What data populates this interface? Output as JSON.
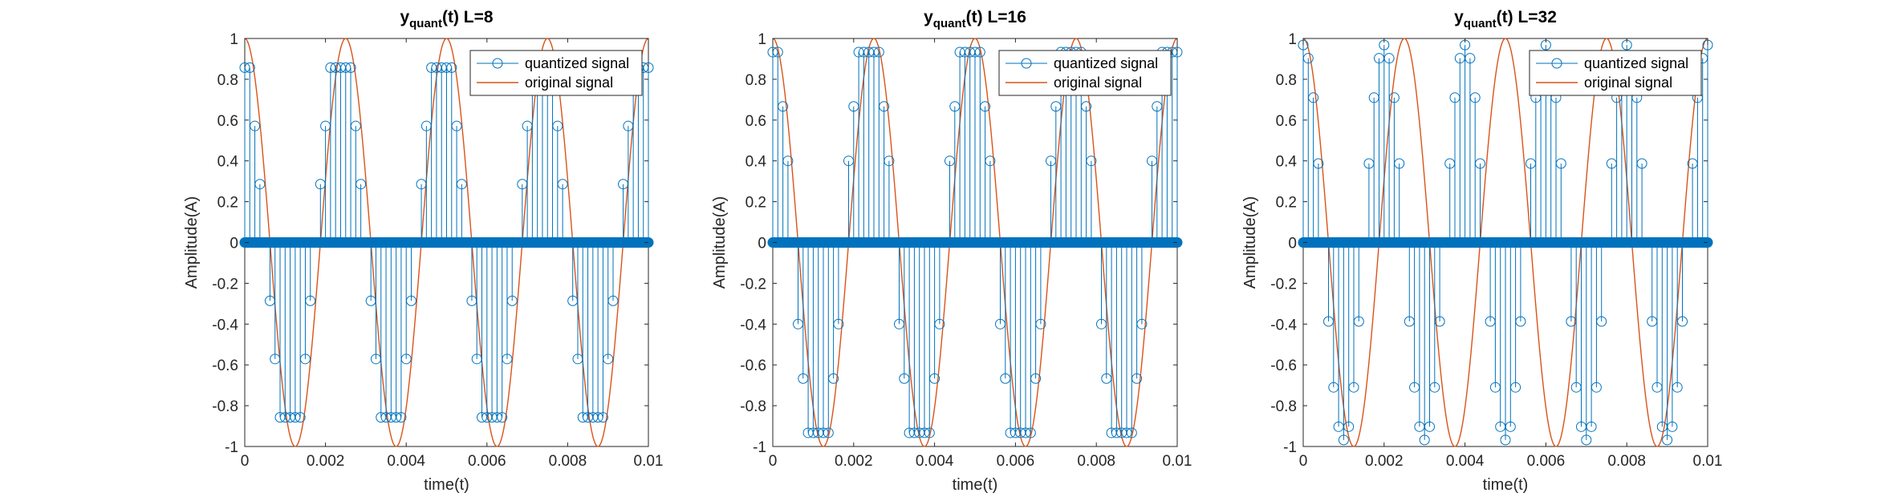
{
  "chart_data": [
    {
      "type": "stem+line",
      "title_main": "y",
      "title_sub": "quant",
      "title_rest": "(t) L=8",
      "xlabel": "time(t)",
      "ylabel": "Amplitude(A)",
      "xlim": [
        0,
        0.01
      ],
      "ylim": [
        -1,
        1
      ],
      "xticks": [
        0,
        0.002,
        0.004,
        0.006,
        0.008,
        0.01
      ],
      "xticklabels": [
        "0",
        "0.002",
        "0.004",
        "0.006",
        "0.008",
        "0.01"
      ],
      "yticks": [
        -1,
        -0.8,
        -0.6,
        -0.4,
        -0.2,
        0,
        0.2,
        0.4,
        0.6,
        0.8,
        1
      ],
      "yticklabels": [
        "-1",
        "-0.8",
        "-0.6",
        "-0.4",
        "-0.2",
        "0",
        "0.2",
        "0.4",
        "0.6",
        "0.8",
        "1"
      ],
      "legend": [
        "quantized signal",
        "original signal"
      ],
      "legend_position": "top-right",
      "grid": false,
      "levels": 8,
      "signal_frequency_hz": 400,
      "sample_interval_s": 0.000125,
      "series": [
        {
          "name": "quantized signal",
          "style": "stem",
          "color": "#0072BD",
          "x": [
            0,
            0.000125,
            0.00025,
            0.000375,
            0.0005,
            0.000625,
            0.00075,
            0.000875,
            0.001,
            0.001125,
            0.00125,
            0.001375,
            0.0015,
            0.001625,
            0.00175,
            0.001875,
            0.002,
            0.002125,
            0.00225,
            0.002375,
            0.0025,
            0.002625,
            0.00275,
            0.002875,
            0.003,
            0.003125,
            0.00325,
            0.003375,
            0.0035,
            0.003625,
            0.00375,
            0.003875,
            0.004,
            0.004125,
            0.00425,
            0.004375,
            0.0045,
            0.004625,
            0.00475,
            0.004875,
            0.005,
            0.005125,
            0.00525,
            0.005375,
            0.0055,
            0.005625,
            0.00575,
            0.005875,
            0.006,
            0.006125,
            0.00625,
            0.006375,
            0.0065,
            0.006625,
            0.00675,
            0.006875,
            0.007,
            0.007125,
            0.00725,
            0.007375,
            0.0075,
            0.007625,
            0.00775,
            0.007875,
            0.008,
            0.008125,
            0.00825,
            0.008375,
            0.0085,
            0.008625,
            0.00875,
            0.008875,
            0.009,
            0.009125,
            0.00925,
            0.009375,
            0.0095,
            0.009625,
            0.00975,
            0.009875,
            0.01
          ],
          "y": [
            0.857,
            0.857,
            0.571,
            0.286,
            0,
            -0.286,
            -0.571,
            -0.857,
            -0.857,
            -0.857,
            -0.857,
            -0.857,
            -0.571,
            -0.286,
            0,
            0.286,
            0.571,
            0.857,
            0.857,
            0.857,
            0.857,
            0.857,
            0.571,
            0.286,
            0,
            -0.286,
            -0.571,
            -0.857,
            -0.857,
            -0.857,
            -0.857,
            -0.857,
            -0.571,
            -0.286,
            0,
            0.286,
            0.571,
            0.857,
            0.857,
            0.857,
            0.857,
            0.857,
            0.571,
            0.286,
            0,
            -0.286,
            -0.571,
            -0.857,
            -0.857,
            -0.857,
            -0.857,
            -0.857,
            -0.571,
            -0.286,
            0,
            0.286,
            0.571,
            0.857,
            0.857,
            0.857,
            0.857,
            0.857,
            0.571,
            0.286,
            0,
            -0.286,
            -0.571,
            -0.857,
            -0.857,
            -0.857,
            -0.857,
            -0.857,
            -0.571,
            -0.286,
            0,
            0.286,
            0.571,
            0.857,
            0.857,
            0.857,
            0.857
          ]
        },
        {
          "name": "original signal",
          "style": "line",
          "color": "#D95319",
          "function": "cos(2*pi*400*t)"
        }
      ]
    },
    {
      "type": "stem+line",
      "title_main": "y",
      "title_sub": "quant",
      "title_rest": "(t) L=16",
      "xlabel": "time(t)",
      "ylabel": "Amplitude(A)",
      "xlim": [
        0,
        0.01
      ],
      "ylim": [
        -1,
        1
      ],
      "xticks": [
        0,
        0.002,
        0.004,
        0.006,
        0.008,
        0.01
      ],
      "xticklabels": [
        "0",
        "0.002",
        "0.004",
        "0.006",
        "0.008",
        "0.01"
      ],
      "yticks": [
        -1,
        -0.8,
        -0.6,
        -0.4,
        -0.2,
        0,
        0.2,
        0.4,
        0.6,
        0.8,
        1
      ],
      "yticklabels": [
        "-1",
        "-0.8",
        "-0.6",
        "-0.4",
        "-0.2",
        "0",
        "0.2",
        "0.4",
        "0.6",
        "0.8",
        "1"
      ],
      "legend": [
        "quantized signal",
        "original signal"
      ],
      "legend_position": "top-right",
      "grid": false,
      "levels": 16,
      "signal_frequency_hz": 400,
      "sample_interval_s": 0.000125,
      "series": [
        {
          "name": "quantized signal",
          "style": "stem",
          "color": "#0072BD",
          "x": [
            0,
            0.000125,
            0.00025,
            0.000375,
            0.0005,
            0.000625,
            0.00075,
            0.000875,
            0.001,
            0.001125,
            0.00125,
            0.001375,
            0.0015,
            0.001625,
            0.00175,
            0.001875,
            0.002,
            0.002125,
            0.00225,
            0.002375,
            0.0025,
            0.002625,
            0.00275,
            0.002875,
            0.003,
            0.003125,
            0.00325,
            0.003375,
            0.0035,
            0.003625,
            0.00375,
            0.003875,
            0.004,
            0.004125,
            0.00425,
            0.004375,
            0.0045,
            0.004625,
            0.00475,
            0.004875,
            0.005,
            0.005125,
            0.00525,
            0.005375,
            0.0055,
            0.005625,
            0.00575,
            0.005875,
            0.006,
            0.006125,
            0.00625,
            0.006375,
            0.0065,
            0.006625,
            0.00675,
            0.006875,
            0.007,
            0.007125,
            0.00725,
            0.007375,
            0.0075,
            0.007625,
            0.00775,
            0.007875,
            0.008,
            0.008125,
            0.00825,
            0.008375,
            0.0085,
            0.008625,
            0.00875,
            0.008875,
            0.009,
            0.009125,
            0.00925,
            0.009375,
            0.0095,
            0.009625,
            0.00975,
            0.009875,
            0.01
          ],
          "y": [
            0.933,
            0.933,
            0.667,
            0.4,
            0,
            -0.4,
            -0.667,
            -0.933,
            -0.933,
            -0.933,
            -0.933,
            -0.933,
            -0.667,
            -0.4,
            0,
            0.4,
            0.667,
            0.933,
            0.933,
            0.933,
            0.933,
            0.933,
            0.667,
            0.4,
            0,
            -0.4,
            -0.667,
            -0.933,
            -0.933,
            -0.933,
            -0.933,
            -0.933,
            -0.667,
            -0.4,
            0,
            0.4,
            0.667,
            0.933,
            0.933,
            0.933,
            0.933,
            0.933,
            0.667,
            0.4,
            0,
            -0.4,
            -0.667,
            -0.933,
            -0.933,
            -0.933,
            -0.933,
            -0.933,
            -0.667,
            -0.4,
            0,
            0.4,
            0.667,
            0.933,
            0.933,
            0.933,
            0.933,
            0.933,
            0.667,
            0.4,
            0,
            -0.4,
            -0.667,
            -0.933,
            -0.933,
            -0.933,
            -0.933,
            -0.933,
            -0.667,
            -0.4,
            0,
            0.4,
            0.667,
            0.933,
            0.933,
            0.933,
            0.933
          ]
        },
        {
          "name": "original signal",
          "style": "line",
          "color": "#D95319",
          "function": "cos(2*pi*400*t)"
        }
      ]
    },
    {
      "type": "stem+line",
      "title_main": "y",
      "title_sub": "quant",
      "title_rest": "(t) L=32",
      "xlabel": "time(t)",
      "ylabel": "Amplitude(A)",
      "xlim": [
        0,
        0.01
      ],
      "ylim": [
        -1,
        1
      ],
      "xticks": [
        0,
        0.002,
        0.004,
        0.006,
        0.008,
        0.01
      ],
      "xticklabels": [
        "0",
        "0.002",
        "0.004",
        "0.006",
        "0.008",
        "0.01"
      ],
      "yticks": [
        -1,
        -0.8,
        -0.6,
        -0.4,
        -0.2,
        0,
        0.2,
        0.4,
        0.6,
        0.8,
        1
      ],
      "yticklabels": [
        "-1",
        "-0.8",
        "-0.6",
        "-0.4",
        "-0.2",
        "0",
        "0.2",
        "0.4",
        "0.6",
        "0.8",
        "1"
      ],
      "legend": [
        "quantized signal",
        "original signal"
      ],
      "legend_position": "top-right",
      "grid": false,
      "levels": 32,
      "signal_frequency_hz": 400,
      "sample_interval_s": 0.000125,
      "series": [
        {
          "name": "quantized signal",
          "style": "stem",
          "color": "#0072BD",
          "x": [
            0,
            0.000125,
            0.00025,
            0.000375,
            0.0005,
            0.000625,
            0.00075,
            0.000875,
            0.001,
            0.001125,
            0.00125,
            0.001375,
            0.0015,
            0.001625,
            0.00175,
            0.001875,
            0.002,
            0.002125,
            0.00225,
            0.002375,
            0.0025,
            0.002625,
            0.00275,
            0.002875,
            0.003,
            0.003125,
            0.00325,
            0.003375,
            0.0035,
            0.003625,
            0.00375,
            0.003875,
            0.004,
            0.004125,
            0.00425,
            0.004375,
            0.0045,
            0.004625,
            0.00475,
            0.004875,
            0.005,
            0.005125,
            0.00525,
            0.005375,
            0.0055,
            0.005625,
            0.00575,
            0.005875,
            0.006,
            0.006125,
            0.00625,
            0.006375,
            0.0065,
            0.006625,
            0.00675,
            0.006875,
            0.007,
            0.007125,
            0.00725,
            0.007375,
            0.0075,
            0.007625,
            0.00775,
            0.007875,
            0.008,
            0.008125,
            0.00825,
            0.008375,
            0.0085,
            0.008625,
            0.00875,
            0.008875,
            0.009,
            0.009125,
            0.00925,
            0.009375,
            0.0095,
            0.009625,
            0.00975,
            0.009875,
            0.01
          ],
          "y": [
            0.968,
            0.903,
            0.71,
            0.387,
            0,
            -0.387,
            -0.71,
            -0.903,
            -0.968,
            -0.903,
            -0.71,
            -0.387,
            0,
            0.387,
            0.71,
            0.903,
            0.968,
            0.903,
            0.71,
            0.387,
            0,
            -0.387,
            -0.71,
            -0.903,
            -0.968,
            -0.903,
            -0.71,
            -0.387,
            0,
            0.387,
            0.71,
            0.903,
            0.968,
            0.903,
            0.71,
            0.387,
            0,
            -0.387,
            -0.71,
            -0.903,
            -0.968,
            -0.903,
            -0.71,
            -0.387,
            0,
            0.387,
            0.71,
            0.903,
            0.968,
            0.903,
            0.71,
            0.387,
            0,
            -0.387,
            -0.71,
            -0.903,
            -0.968,
            -0.903,
            -0.71,
            -0.387,
            0,
            0.387,
            0.71,
            0.903,
            0.968,
            0.903,
            0.71,
            0.387,
            0,
            -0.387,
            -0.71,
            -0.903,
            -0.968,
            -0.903,
            -0.71,
            -0.387,
            0,
            0.387,
            0.71,
            0.903,
            0.968
          ]
        },
        {
          "name": "original signal",
          "style": "line",
          "color": "#D95319",
          "function": "cos(2*pi*400*t)"
        }
      ]
    }
  ]
}
